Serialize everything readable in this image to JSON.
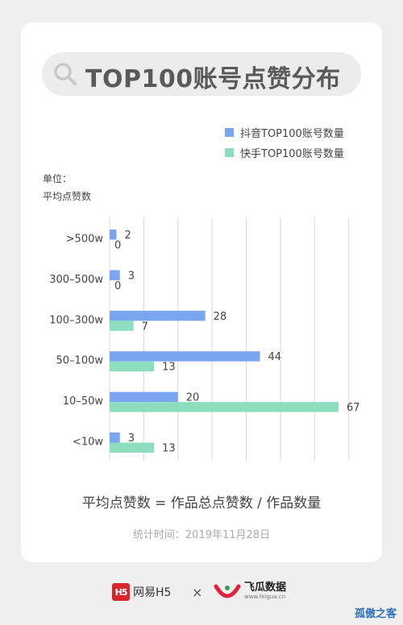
{
  "chart_data": {
    "type": "bar",
    "orientation": "horizontal",
    "title": "TOP100账号点赞分布",
    "unit_label": [
      "单位：",
      "平均点赞数"
    ],
    "categories": [
      ">500w",
      "300–500w",
      "100–300w",
      "50–100w",
      "10–50w",
      "<10w"
    ],
    "series": [
      {
        "name": "抖音TOP100账号数量",
        "values": [
          2,
          3,
          28,
          44,
          20,
          3
        ],
        "color": "#7aa6f0"
      },
      {
        "name": "快手TOP100账号数量",
        "values": [
          0,
          0,
          7,
          13,
          67,
          13
        ],
        "color": "#8dddbf"
      }
    ],
    "xlim": [
      0,
      70
    ],
    "grid": true,
    "legend_position": "top-right"
  },
  "formula": "平均点赞数 = 作品总点赞数 / 作品数量",
  "stat_date": "统计时间：2019年11月28日",
  "footer": {
    "logo_163_mark": "H5",
    "logo_163_text": "网易H5",
    "separator": "×",
    "feigua_name": "飞瓜数据",
    "feigua_url": "www.feigua.cn"
  },
  "watermark": "孤傲之客",
  "colors": {
    "background": "#efefef",
    "card": "#ffffff",
    "pill": "#ececec",
    "grid": "#d9d9d9"
  }
}
